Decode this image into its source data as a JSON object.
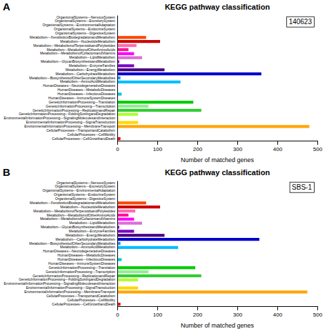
{
  "chart_data": [
    {
      "type": "bar",
      "orientation": "horizontal",
      "title": "KEGG pathway classification",
      "xlabel": "Number of matched genes",
      "categories": [
        "OrganismalSystems---NervousSystem",
        "OrganismalSystems---ExcretorySystem",
        "OrganismalSystems---EnvironmentalAdaptation",
        "OrganismalSystems---EndocrineSystem",
        "OrganismalSystems---DigestiveSystem",
        "Metabolism---XenobioticsBiodegradationandMetabolism",
        "Metabolism---NucleotideMetabolism",
        "Metabolism---MetabolismofTerpenoidsandPolyketides",
        "Metabolism---MetabolismofOtherAminoAcids",
        "Metabolism---MetabolismofCofactorsandVitamins",
        "Metabolism---LipidMetabolism",
        "Metabolism---GlycanBiosynthesisandMetabolism",
        "Metabolism---EnzymeFamilies",
        "Metabolism---EnergyMetabolism",
        "Metabolism---CarbohydrateMetabolism",
        "Metabolism---BiosynthesisofOtherSecondaryMetabolites",
        "Metabolism---AminoAcidMetabolism",
        "HumanDiseases---NeurodegenerativeDiseases",
        "HumanDiseases---MetabolicDiseases",
        "HumanDiseases---InfectiousDiseases",
        "HumanDiseases---ImmuneSystemDiseases",
        "GeneticInformationProcessing---Translation",
        "GeneticInformationProcessing---Transcription",
        "GeneticInformationProcessing---ReplicationandRepair",
        "GeneticInformationProcessing---FoldingSortingandDegradation",
        "EnvironmentalInformationProcessing---SignalingMoleculesandInteraction",
        "EnvironmentalInformationProcessing---SignalTransduction",
        "EnvironmentalInformationProcessing---MembraneTransport",
        "CellularProcesses---TransportandCatabolism",
        "CellularProcesses---CellMotility",
        "CellularProcesses---CellGrowthandDeath"
      ],
      "values": [
        0,
        0,
        0,
        0,
        0,
        72,
        107,
        48,
        28,
        42,
        62,
        5,
        42,
        118,
        360,
        8,
        158,
        0,
        0,
        11,
        0,
        190,
        78,
        210,
        52,
        4,
        52,
        480,
        0,
        0,
        8
      ],
      "colors": [
        "#a0a0a0",
        "#a0a0a0",
        "#a0a0a0",
        "#a0a0a0",
        "#a0a0a0",
        "#ff4500",
        "#cc0000",
        "#ff69b4",
        "#ff1493",
        "#ff00ff",
        "#da70d6",
        "#9400d3",
        "#7b00c8",
        "#4b0082",
        "#0000cd",
        "#1e90ff",
        "#00bfff",
        "#a0a0a0",
        "#a0a0a0",
        "#00ced1",
        "#a0a0a0",
        "#00cc00",
        "#90ee90",
        "#32cd32",
        "#adff2f",
        "#ffff44",
        "#ffd700",
        "#ffa500",
        "#a0a0a0",
        "#a0a0a0",
        "#ff0000"
      ],
      "xlim": [
        0,
        500
      ],
      "xticks": [
        0,
        100,
        200,
        300,
        400,
        500
      ],
      "annotations": [
        "A",
        "140623"
      ]
    },
    {
      "type": "bar",
      "orientation": "horizontal",
      "title": "KEGG pathway classification",
      "xlabel": "Number of matched genes",
      "categories": [
        "OrganismalSystems---NervousSystem",
        "OrganismalSystems---ExcretorySystem",
        "OrganismalSystems---EnvironmentalAdaptation",
        "OrganismalSystems---EndocrineSystem",
        "OrganismalSystems---DigestiveSystem",
        "Metabolism---XenobioticsBiodegradationandMetabolism",
        "Metabolism---NucleotideMetabolism",
        "Metabolism---MetabolismofTerpenoidsandPolyketides",
        "Metabolism---MetabolismofOtherAminoAcids",
        "Metabolism---MetabolismofCofactorsandVitamins",
        "Metabolism---LipidMetabolism",
        "Metabolism---GlycanBiosynthesisandMetabolism",
        "Metabolism---EnzymeFamilies",
        "Metabolism---EnergyMetabolism",
        "Metabolism---CarbohydrateMetabolism",
        "Metabolism---BiosynthesisofOtherSecondaryMetabolites",
        "Metabolism---AminoAcidMetabolism",
        "HumanDiseases---NeurodegenerativeDiseases",
        "HumanDiseases---MetabolicDiseases",
        "HumanDiseases---InfectiousDiseases",
        "HumanDiseases---ImmuneSystemDiseases",
        "GeneticInformationProcessing---Translation",
        "GeneticInformationProcessing---Transcription",
        "GeneticInformationProcessing---ReplicationandRepair",
        "GeneticInformationProcessing---FoldingSortingandDegradation",
        "EnvironmentalInformationProcessing---SignalingMoleculesandInteraction",
        "EnvironmentalInformationProcessing---SignalTransduction",
        "EnvironmentalInformationProcessing---MembraneTransport",
        "CellularProcesses---TransportandCatabolism",
        "CellularProcesses---CellMotility",
        "CellularProcesses---CellGrowthandDeath"
      ],
      "values": [
        0,
        0,
        0,
        0,
        0,
        72,
        107,
        45,
        28,
        42,
        62,
        5,
        42,
        118,
        355,
        8,
        152,
        0,
        0,
        11,
        0,
        195,
        78,
        210,
        52,
        4,
        52,
        475,
        0,
        0,
        8
      ],
      "colors": [
        "#a0a0a0",
        "#a0a0a0",
        "#a0a0a0",
        "#a0a0a0",
        "#a0a0a0",
        "#ff4500",
        "#cc0000",
        "#ff69b4",
        "#ff1493",
        "#ff00ff",
        "#da70d6",
        "#9400d3",
        "#7b00c8",
        "#4b0082",
        "#0000cd",
        "#1e90ff",
        "#00bfff",
        "#a0a0a0",
        "#a0a0a0",
        "#00ced1",
        "#a0a0a0",
        "#00cc00",
        "#90ee90",
        "#32cd32",
        "#adff2f",
        "#ffff44",
        "#ffd700",
        "#ffa500",
        "#a0a0a0",
        "#a0a0a0",
        "#ff0000"
      ],
      "xlim": [
        0,
        500
      ],
      "xticks": [
        0,
        100,
        200,
        300,
        400,
        500
      ],
      "annotations": [
        "B",
        "SBS-1"
      ]
    }
  ]
}
